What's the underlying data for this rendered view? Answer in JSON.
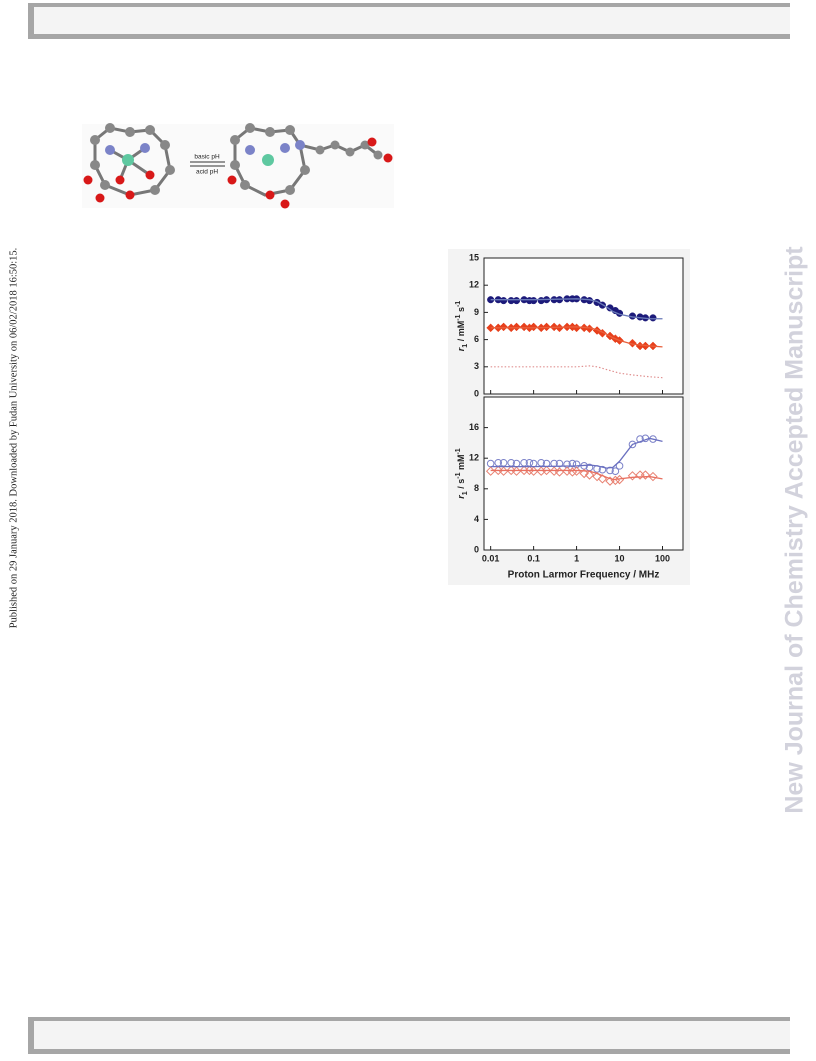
{
  "side_note": "Published on 29 January 2018. Downloaded by Fudan University on 06/02/2018 16:50:15.",
  "watermark": "New Journal of Chemistry Accepted Manuscript",
  "scheme": {
    "forward_label": "basic pH",
    "reverse_label": "acid pH"
  },
  "chart_data": [
    {
      "type": "scatter",
      "xscale": "log",
      "ylabel_parts": [
        {
          "text": "r"
        },
        {
          "text": "1",
          "sub": true
        },
        {
          "text": " / mM"
        },
        {
          "text": "-1",
          "sup": true
        },
        {
          "text": " s"
        },
        {
          "text": "-1",
          "sup": true
        }
      ],
      "xlim": [
        0.007,
        300
      ],
      "xticks": [
        0.01,
        0.1,
        1,
        10,
        100
      ],
      "xtick_labels": false,
      "ylim": [
        0,
        15
      ],
      "yticks": [
        0,
        3,
        6,
        9,
        12,
        15
      ],
      "series": [
        {
          "color": "#1c1a7a",
          "marker": "circle-filled",
          "x": [
            0.01,
            0.015,
            0.02,
            0.03,
            0.04,
            0.06,
            0.08,
            0.1,
            0.15,
            0.2,
            0.3,
            0.4,
            0.6,
            0.8,
            1,
            1.5,
            2,
            3,
            4,
            6,
            8,
            10,
            20,
            30,
            40,
            60
          ],
          "values": [
            10.4,
            10.4,
            10.3,
            10.3,
            10.3,
            10.4,
            10.3,
            10.3,
            10.3,
            10.4,
            10.4,
            10.4,
            10.5,
            10.5,
            10.5,
            10.4,
            10.3,
            10.1,
            9.8,
            9.5,
            9.2,
            8.9,
            8.6,
            8.5,
            8.4,
            8.4
          ]
        },
        {
          "color": "#e8401c",
          "marker": "diamond-filled",
          "x": [
            0.01,
            0.015,
            0.02,
            0.03,
            0.04,
            0.06,
            0.08,
            0.1,
            0.15,
            0.2,
            0.3,
            0.4,
            0.6,
            0.8,
            1,
            1.5,
            2,
            3,
            4,
            6,
            8,
            10,
            20,
            30,
            40,
            60
          ],
          "values": [
            7.3,
            7.3,
            7.4,
            7.3,
            7.4,
            7.4,
            7.3,
            7.4,
            7.3,
            7.4,
            7.4,
            7.3,
            7.4,
            7.4,
            7.3,
            7.3,
            7.2,
            7.0,
            6.7,
            6.4,
            6.1,
            5.9,
            5.6,
            5.3,
            5.3,
            5.3
          ]
        },
        {
          "color": "#6a7ab8",
          "line": "solid",
          "x": [
            0.01,
            0.1,
            1,
            2,
            3,
            5,
            7,
            10,
            20,
            50,
            100
          ],
          "values": [
            10.4,
            10.4,
            10.5,
            10.4,
            10.2,
            9.6,
            9.1,
            8.8,
            8.5,
            8.3,
            8.3
          ]
        },
        {
          "color": "#e8603c",
          "line": "solid",
          "x": [
            0.01,
            0.1,
            1,
            2,
            3,
            5,
            7,
            10,
            20,
            50,
            100
          ],
          "values": [
            7.3,
            7.3,
            7.4,
            7.3,
            7.1,
            6.6,
            6.2,
            5.9,
            5.5,
            5.3,
            5.2
          ]
        },
        {
          "color": "#e09090",
          "line": "dotted",
          "x": [
            0.01,
            0.1,
            1,
            2,
            3,
            5,
            7,
            10,
            20,
            50,
            100
          ],
          "values": [
            3,
            3,
            3,
            3.1,
            3.0,
            2.7,
            2.5,
            2.3,
            2.1,
            1.9,
            1.8
          ]
        }
      ]
    },
    {
      "type": "scatter",
      "xscale": "log",
      "xlabel": "Proton Larmor Frequency / MHz",
      "ylabel_parts": [
        {
          "text": "r"
        },
        {
          "text": "1",
          "sub": true
        },
        {
          "text": " / s"
        },
        {
          "text": "-1",
          "sup": true
        },
        {
          "text": " mM"
        },
        {
          "text": "-1",
          "sup": true
        }
      ],
      "xlim": [
        0.007,
        300
      ],
      "xticks": [
        0.01,
        0.1,
        1,
        10,
        100
      ],
      "xtick_labels": true,
      "ylim": [
        0,
        20
      ],
      "yticks": [
        0,
        4,
        8,
        12,
        16
      ],
      "series": [
        {
          "color": "#7a80c8",
          "marker": "circle-open",
          "x": [
            0.01,
            0.015,
            0.02,
            0.03,
            0.04,
            0.06,
            0.08,
            0.1,
            0.15,
            0.2,
            0.3,
            0.4,
            0.6,
            0.8,
            1,
            1.5,
            2,
            3,
            4,
            6,
            8,
            10,
            20,
            30,
            40,
            60
          ],
          "values": [
            11.3,
            11.4,
            11.4,
            11.4,
            11.3,
            11.4,
            11.4,
            11.3,
            11.4,
            11.3,
            11.3,
            11.3,
            11.2,
            11.3,
            11.2,
            11.0,
            10.8,
            10.6,
            10.5,
            10.4,
            10.3,
            11.0,
            13.8,
            14.5,
            14.6,
            14.5
          ]
        },
        {
          "color": "#e88070",
          "marker": "diamond-open",
          "x": [
            0.01,
            0.015,
            0.02,
            0.03,
            0.04,
            0.06,
            0.08,
            0.1,
            0.15,
            0.2,
            0.3,
            0.4,
            0.6,
            0.8,
            1,
            1.5,
            2,
            3,
            4,
            6,
            8,
            10,
            20,
            30,
            40,
            60
          ],
          "values": [
            10.3,
            10.4,
            10.3,
            10.4,
            10.3,
            10.4,
            10.4,
            10.3,
            10.3,
            10.4,
            10.3,
            10.2,
            10.3,
            10.2,
            10.3,
            10.0,
            9.8,
            9.6,
            9.3,
            9.0,
            9.1,
            9.2,
            9.7,
            9.8,
            9.8,
            9.6
          ]
        },
        {
          "color": "#6a70c0",
          "line": "solid",
          "x": [
            0.01,
            0.1,
            1,
            2,
            3,
            5,
            7,
            10,
            20,
            50,
            100
          ],
          "values": [
            10.9,
            10.9,
            11.0,
            11.1,
            11.0,
            10.7,
            10.8,
            11.6,
            13.8,
            14.6,
            14.2
          ]
        },
        {
          "color": "#e87060",
          "line": "solid",
          "x": [
            0.01,
            0.1,
            1,
            2,
            3,
            5,
            7,
            10,
            20,
            50,
            100
          ],
          "values": [
            10.4,
            10.4,
            10.4,
            10.3,
            10.0,
            9.5,
            9.2,
            9.3,
            9.5,
            9.6,
            9.3
          ]
        }
      ]
    }
  ]
}
